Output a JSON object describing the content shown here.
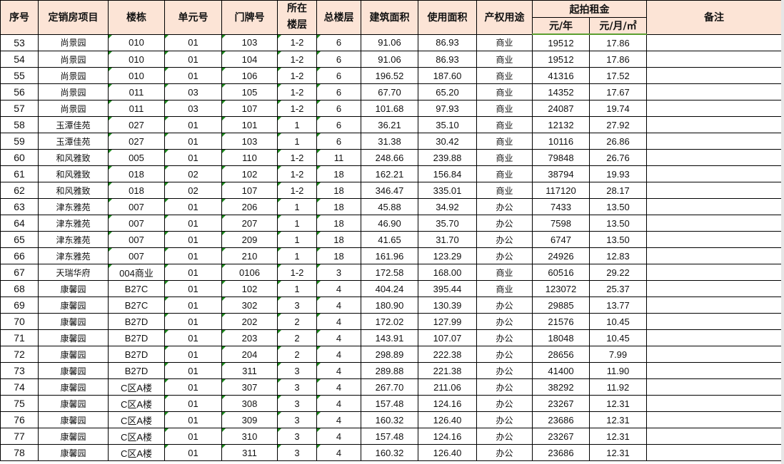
{
  "header": {
    "seq": "序号",
    "project": "定销房项目",
    "building": "楼栋",
    "unit": "单元号",
    "door": "门牌号",
    "floor": "所在\n楼层",
    "total_floors": "总楼层",
    "build_area": "建筑面积",
    "use_area": "使用面积",
    "usage": "产权用途",
    "rent": "起拍租金",
    "rent_year": "元/年",
    "rent_month": "元/月/㎡",
    "remark": "备注"
  },
  "rows": [
    [
      "53",
      "尚景园",
      "010",
      "01",
      "103",
      "1-2",
      "6",
      "91.06",
      "86.93",
      "商业",
      "19512",
      "17.86",
      ""
    ],
    [
      "54",
      "尚景园",
      "010",
      "01",
      "104",
      "1-2",
      "6",
      "91.06",
      "86.93",
      "商业",
      "19512",
      "17.86",
      ""
    ],
    [
      "55",
      "尚景园",
      "010",
      "01",
      "106",
      "1-2",
      "6",
      "196.52",
      "187.60",
      "商业",
      "41316",
      "17.52",
      ""
    ],
    [
      "56",
      "尚景园",
      "011",
      "03",
      "105",
      "1-2",
      "6",
      "67.70",
      "65.20",
      "商业",
      "14352",
      "17.67",
      ""
    ],
    [
      "57",
      "尚景园",
      "011",
      "03",
      "107",
      "1-2",
      "6",
      "101.68",
      "97.93",
      "商业",
      "24087",
      "19.74",
      ""
    ],
    [
      "58",
      "玉潭佳苑",
      "027",
      "01",
      "101",
      "1",
      "6",
      "36.21",
      "35.10",
      "商业",
      "12132",
      "27.92",
      ""
    ],
    [
      "59",
      "玉潭佳苑",
      "027",
      "01",
      "103",
      "1",
      "6",
      "31.38",
      "30.42",
      "商业",
      "10116",
      "26.86",
      ""
    ],
    [
      "60",
      "和风雅致",
      "005",
      "01",
      "110",
      "1-2",
      "11",
      "248.66",
      "239.88",
      "商业",
      "79848",
      "26.76",
      ""
    ],
    [
      "61",
      "和风雅致",
      "018",
      "02",
      "102",
      "1-2",
      "18",
      "162.21",
      "156.84",
      "商业",
      "38794",
      "19.93",
      ""
    ],
    [
      "62",
      "和风雅致",
      "018",
      "02",
      "107",
      "1-2",
      "18",
      "346.47",
      "335.01",
      "商业",
      "117120",
      "28.17",
      ""
    ],
    [
      "63",
      "津东雅苑",
      "007",
      "01",
      "206",
      "1",
      "18",
      "45.88",
      "34.92",
      "办公",
      "7433",
      "13.50",
      ""
    ],
    [
      "64",
      "津东雅苑",
      "007",
      "01",
      "207",
      "1",
      "18",
      "46.90",
      "35.70",
      "办公",
      "7598",
      "13.50",
      ""
    ],
    [
      "65",
      "津东雅苑",
      "007",
      "01",
      "209",
      "1",
      "18",
      "41.65",
      "31.70",
      "办公",
      "6747",
      "13.50",
      ""
    ],
    [
      "66",
      "津东雅苑",
      "007",
      "01",
      "210",
      "1",
      "18",
      "161.96",
      "123.29",
      "办公",
      "24926",
      "12.83",
      ""
    ],
    [
      "67",
      "天瑞华府",
      "004商业",
      "01",
      "0106",
      "1-2",
      "3",
      "172.58",
      "168.00",
      "商业",
      "60516",
      "29.22",
      ""
    ],
    [
      "68",
      "康馨园",
      "B27C",
      "01",
      "102",
      "1",
      "4",
      "404.24",
      "395.44",
      "商业",
      "123072",
      "25.37",
      ""
    ],
    [
      "69",
      "康馨园",
      "B27C",
      "01",
      "302",
      "3",
      "4",
      "180.90",
      "130.39",
      "办公",
      "29885",
      "13.77",
      ""
    ],
    [
      "70",
      "康馨园",
      "B27D",
      "01",
      "202",
      "2",
      "4",
      "172.02",
      "127.99",
      "办公",
      "21576",
      "10.45",
      ""
    ],
    [
      "71",
      "康馨园",
      "B27D",
      "01",
      "203",
      "2",
      "4",
      "143.91",
      "107.07",
      "办公",
      "18048",
      "10.45",
      ""
    ],
    [
      "72",
      "康馨园",
      "B27D",
      "01",
      "204",
      "2",
      "4",
      "298.89",
      "222.38",
      "办公",
      "28656",
      "7.99",
      ""
    ],
    [
      "73",
      "康馨园",
      "B27D",
      "01",
      "311",
      "3",
      "4",
      "289.88",
      "221.38",
      "办公",
      "41400",
      "11.90",
      ""
    ],
    [
      "74",
      "康馨园",
      "C区A楼",
      "01",
      "307",
      "3",
      "4",
      "267.70",
      "211.06",
      "办公",
      "38292",
      "11.92",
      ""
    ],
    [
      "75",
      "康馨园",
      "C区A楼",
      "01",
      "308",
      "3",
      "4",
      "157.48",
      "124.16",
      "办公",
      "23267",
      "12.31",
      ""
    ],
    [
      "76",
      "康馨园",
      "C区A楼",
      "01",
      "309",
      "3",
      "4",
      "160.32",
      "126.40",
      "办公",
      "23686",
      "12.31",
      ""
    ],
    [
      "77",
      "康馨园",
      "C区A楼",
      "01",
      "310",
      "3",
      "4",
      "157.48",
      "124.16",
      "办公",
      "23267",
      "12.31",
      ""
    ],
    [
      "78",
      "康馨园",
      "C区A楼",
      "01",
      "311",
      "3",
      "4",
      "160.32",
      "126.40",
      "办公",
      "23686",
      "12.31",
      ""
    ]
  ],
  "colors": {
    "header_bg": "#fce4d6",
    "header_rule": "#5a9e2f",
    "text_number_marker": "#1e8a1e"
  }
}
